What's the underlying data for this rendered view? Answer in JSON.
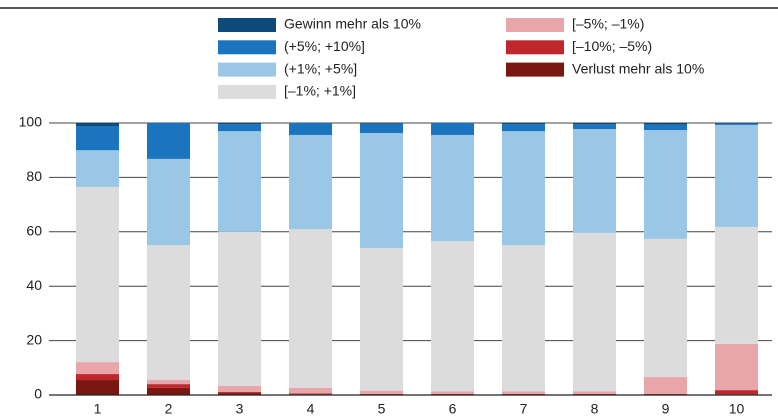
{
  "chart_data": {
    "type": "stacked_bar",
    "categories": [
      "1",
      "2",
      "3",
      "4",
      "5",
      "6",
      "7",
      "8",
      "9",
      "10"
    ],
    "series": [
      {
        "name": "Gewinn mehr als 10%",
        "color": "#0d4a7a",
        "values": [
          1.1,
          0,
          0.4,
          0,
          0.3,
          0,
          0.4,
          0.5,
          0.6,
          0.2
        ]
      },
      {
        "name": "(+5%; +10%]",
        "color": "#1a74be",
        "values": [
          8.9,
          13.2,
          2.6,
          4.4,
          3.4,
          4.4,
          2.6,
          1.7,
          2.0,
          0.5
        ]
      },
      {
        "name": "(+1%; +5%]",
        "color": "#9ac7e6",
        "values": [
          13.5,
          31.7,
          37,
          34.6,
          42.3,
          39,
          41.9,
          38.2,
          40,
          37.5
        ]
      },
      {
        "name": "[–1%; +1%]",
        "color": "#dcdcdc",
        "values": [
          64.4,
          49.6,
          56.7,
          58.4,
          52.4,
          55.3,
          53.8,
          58.2,
          50.8,
          43
        ]
      },
      {
        "name": "[–5%; –1%)",
        "color": "#e8a6aa",
        "values": [
          4.4,
          1.5,
          2.2,
          2.0,
          1.2,
          0.9,
          0.9,
          1.0,
          6.2,
          17
        ]
      },
      {
        "name": "[–10%; –5%)",
        "color": "#c0272d",
        "values": [
          2.2,
          1.4,
          0.4,
          0.3,
          0.2,
          0.2,
          0.2,
          0.2,
          0.2,
          1.5
        ]
      },
      {
        "name": "Verlust mehr als 10%",
        "color": "#7a1711",
        "values": [
          5.5,
          2.6,
          0.7,
          0.3,
          0.2,
          0.2,
          0.2,
          0.2,
          0.2,
          0.3
        ]
      }
    ],
    "ylim": [
      0,
      100
    ],
    "yticks": [
      0,
      20,
      40,
      60,
      80,
      100
    ],
    "grid": true
  }
}
